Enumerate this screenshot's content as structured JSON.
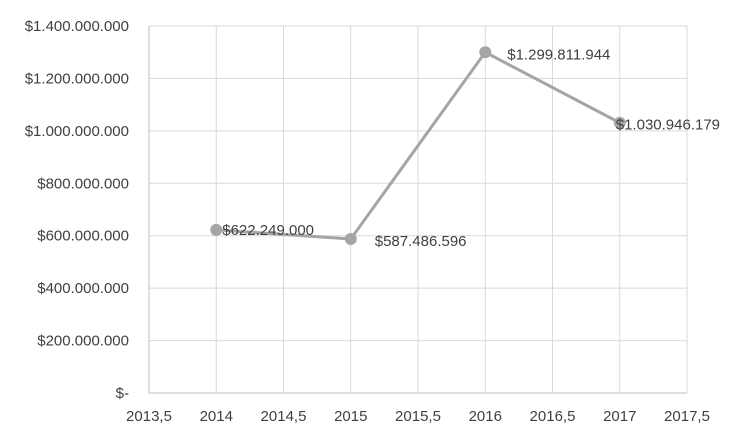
{
  "chart_data": {
    "type": "scatter",
    "title": "",
    "xlabel": "",
    "ylabel": "",
    "xlim": [
      2013.5,
      2017.5
    ],
    "ylim": [
      0,
      1400000000
    ],
    "x_ticks": [
      2013.5,
      2014,
      2014.5,
      2015,
      2015.5,
      2016,
      2016.5,
      2017,
      2017.5
    ],
    "x_tick_labels": [
      "2013,5",
      "2014",
      "2014,5",
      "2015",
      "2015,5",
      "2016",
      "2016,5",
      "2017",
      "2017,5"
    ],
    "y_ticks": [
      0,
      200000000,
      400000000,
      600000000,
      800000000,
      1000000000,
      1200000000,
      1400000000
    ],
    "y_tick_labels": [
      "$-",
      "$200.000.000",
      "$400.000.000",
      "$600.000.000",
      "$800.000.000",
      "$1.000.000.000",
      "$1.200.000.000",
      "$1.400.000.000"
    ],
    "grid": true,
    "legend": "none",
    "series": [
      {
        "x": [
          2014,
          2015,
          2016,
          2017
        ],
        "y": [
          622249000,
          587486596,
          1299811944,
          1030946179
        ],
        "labels": [
          "$622.249.000",
          "$587.486.596",
          "$1.299.811.944",
          "$1.030.946.179"
        ],
        "color": "#a5a5a5",
        "connected": true
      }
    ]
  }
}
